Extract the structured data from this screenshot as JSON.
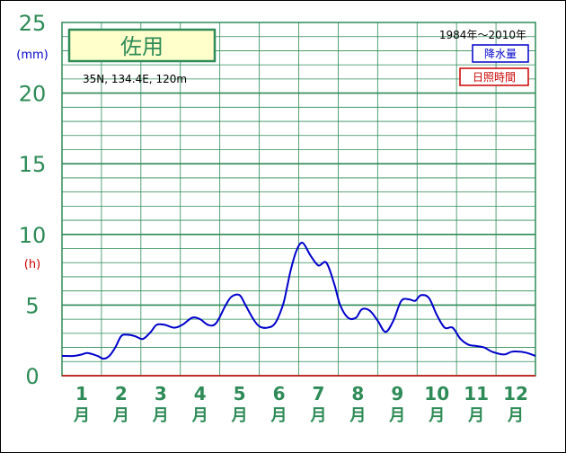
{
  "chart_data": {
    "type": "line",
    "title": "佐用",
    "location": "35N,  134.4E,  120m",
    "period": "1984年～2010年",
    "y_unit_top": "(mm)",
    "y_unit_mid": "(h)",
    "legend": [
      "降水量",
      "日照時間"
    ],
    "ylim": [
      0,
      25
    ],
    "y_ticks": [
      "0",
      "5",
      "10",
      "15",
      "20",
      "25"
    ],
    "y_tick_values": [
      0,
      5,
      10,
      15,
      20,
      25
    ],
    "month_labels": [
      "1",
      "2",
      "3",
      "4",
      "5",
      "6",
      "7",
      "8",
      "9",
      "10",
      "11",
      "12"
    ],
    "month_suffix": "月",
    "series": [
      {
        "name": "降水量",
        "color": "#0000cc",
        "x": [
          0.0,
          0.3,
          0.5,
          0.65,
          0.9,
          1.05,
          1.2,
          1.35,
          1.5,
          1.65,
          1.85,
          2.05,
          2.25,
          2.4,
          2.6,
          2.85,
          3.05,
          3.3,
          3.5,
          3.7,
          3.9,
          4.15,
          4.3,
          4.5,
          4.65,
          4.85,
          5.0,
          5.2,
          5.4,
          5.6,
          5.7,
          5.8,
          5.95,
          6.1,
          6.3,
          6.5,
          6.7,
          6.9,
          7.05,
          7.25,
          7.45,
          7.6,
          7.8,
          8.0,
          8.2,
          8.4,
          8.6,
          8.8,
          8.95,
          9.1,
          9.3,
          9.5,
          9.7,
          9.9,
          10.1,
          10.3,
          10.5,
          10.7,
          10.9,
          11.2,
          11.4,
          11.6,
          11.8,
          12.0
        ],
        "values": [
          1.4,
          1.4,
          1.5,
          1.6,
          1.4,
          1.2,
          1.4,
          2.0,
          2.8,
          2.9,
          2.8,
          2.6,
          3.1,
          3.6,
          3.6,
          3.4,
          3.6,
          4.1,
          4.0,
          3.6,
          3.7,
          5.0,
          5.6,
          5.7,
          5.0,
          4.0,
          3.5,
          3.4,
          3.7,
          5.0,
          6.2,
          7.5,
          8.9,
          9.4,
          8.5,
          7.8,
          8.0,
          6.5,
          5.0,
          4.1,
          4.1,
          4.7,
          4.6,
          3.9,
          3.1,
          3.9,
          5.3,
          5.4,
          5.3,
          5.7,
          5.5,
          4.3,
          3.4,
          3.4,
          2.6,
          2.2,
          2.1,
          2.0,
          1.7,
          1.5,
          1.7,
          1.7,
          1.6,
          1.4
        ]
      },
      {
        "name": "日照時間",
        "color": "#cc0000",
        "x": [
          0,
          12
        ],
        "values": [
          0,
          0
        ]
      }
    ],
    "grid": true
  }
}
